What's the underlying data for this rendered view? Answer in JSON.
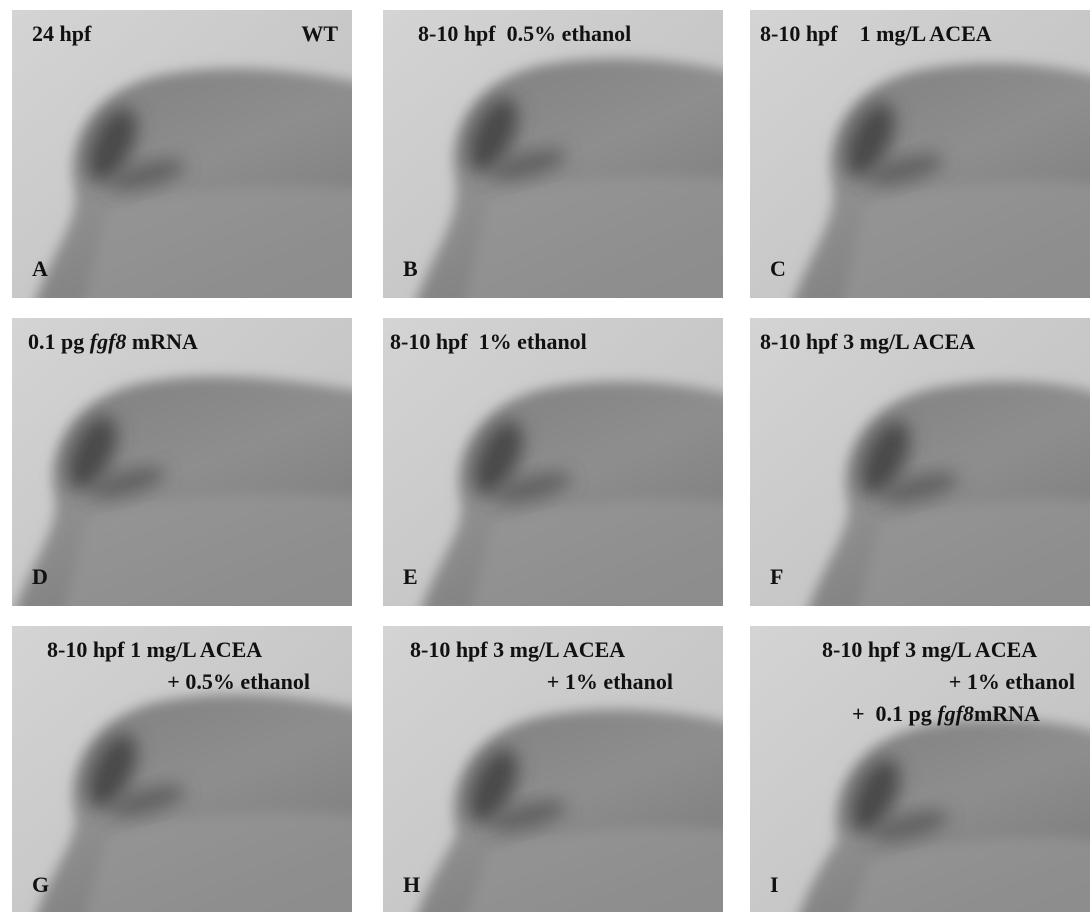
{
  "panels": [
    {
      "letter": "A",
      "lines": [
        [
          "24 hpf"
        ],
        [
          "WT"
        ]
      ]
    },
    {
      "letter": "B",
      "lines": [
        [
          "8-10 hpf  0.5% ethanol"
        ]
      ]
    },
    {
      "letter": "C",
      "lines": [
        [
          "8-10 hpf    1 mg/L ACEA"
        ]
      ]
    },
    {
      "letter": "D",
      "lines": [
        [
          "0.1 pg ",
          {
            "text": "fgf8",
            "italic": true
          },
          " mRNA"
        ]
      ]
    },
    {
      "letter": "E",
      "lines": [
        [
          "8-10 hpf  1% ethanol"
        ]
      ]
    },
    {
      "letter": "F",
      "lines": [
        [
          "8-10 hpf 3 mg/L ACEA"
        ]
      ]
    },
    {
      "letter": "G",
      "lines": [
        [
          "8-10 hpf 1 mg/L ACEA"
        ],
        [
          "+ 0.5% ethanol"
        ]
      ]
    },
    {
      "letter": "H",
      "lines": [
        [
          "8-10 hpf 3 mg/L ACEA"
        ],
        [
          "+ 1% ethanol"
        ]
      ]
    },
    {
      "letter": "I",
      "lines": [
        [
          "8-10 hpf 3 mg/L ACEA"
        ],
        [
          "+ 1% ethanol"
        ],
        [
          "+  0.1 pg ",
          {
            "text": "fgf8",
            "italic": true
          },
          "mRNA"
        ]
      ]
    }
  ]
}
